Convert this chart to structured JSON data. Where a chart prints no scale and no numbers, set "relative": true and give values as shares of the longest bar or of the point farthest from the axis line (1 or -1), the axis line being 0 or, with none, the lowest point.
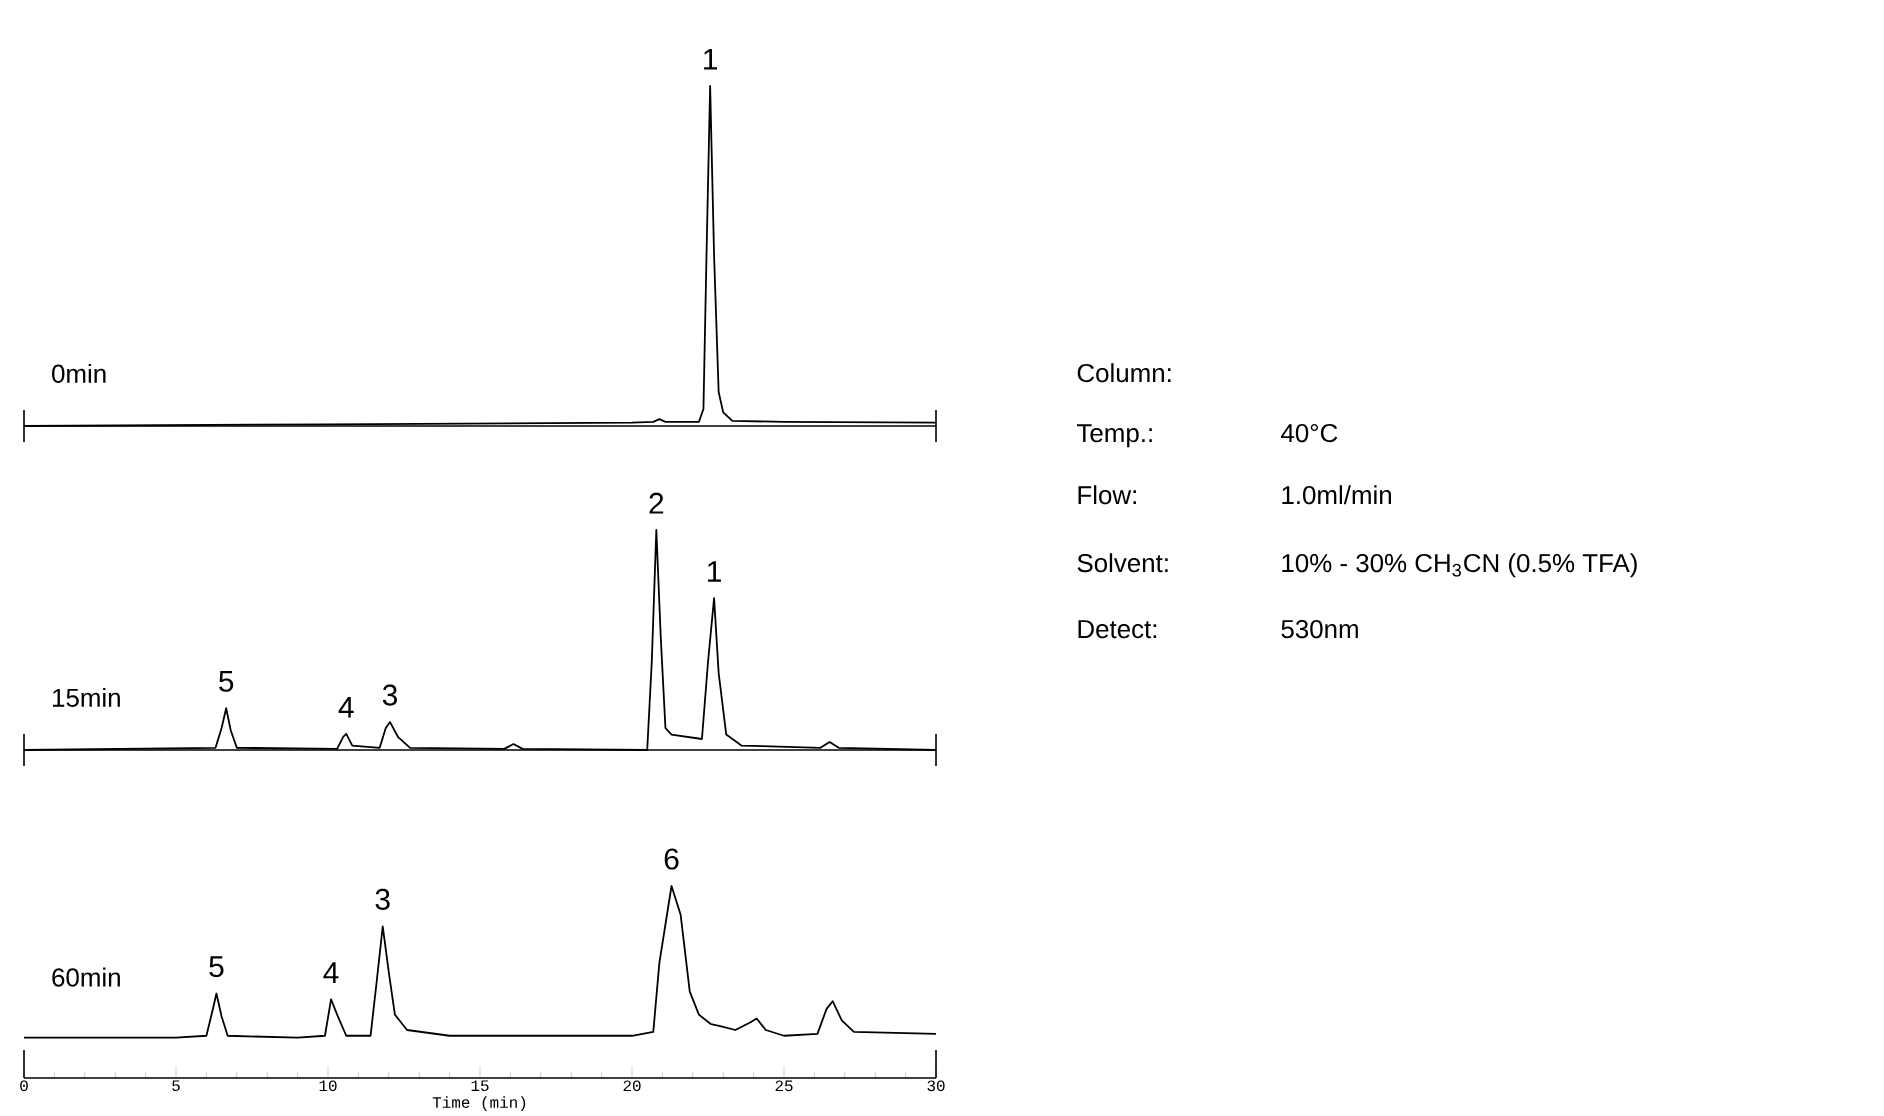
{
  "chart_data": [
    {
      "type": "line",
      "title": "0min",
      "relative": true,
      "xlim": [
        0,
        30
      ],
      "x": [
        0,
        10,
        20,
        20.7,
        20.9,
        21.1,
        22.2,
        22.35,
        22.45,
        22.57,
        22.7,
        22.85,
        23.0,
        23.3,
        25,
        30
      ],
      "series": [
        {
          "color": "#000000",
          "values": [
            0,
            0.005,
            0.01,
            0.012,
            0.02,
            0.012,
            0.012,
            0.05,
            0.5,
            1.0,
            0.5,
            0.1,
            0.04,
            0.015,
            0.012,
            0.01
          ]
        }
      ],
      "annotations": [
        {
          "text": "1",
          "x": 22.57,
          "y": 1.0
        }
      ]
    },
    {
      "type": "line",
      "title": "15min",
      "relative": true,
      "xlim": [
        0,
        30
      ],
      "x": [
        0,
        6.3,
        6.5,
        6.65,
        6.8,
        7.0,
        10.3,
        10.5,
        10.6,
        10.8,
        11.7,
        11.9,
        12.04,
        12.3,
        12.7,
        15.8,
        16.1,
        16.4,
        20.5,
        20.65,
        20.8,
        20.95,
        21.1,
        21.3,
        22.3,
        22.5,
        22.7,
        22.85,
        23.1,
        23.6,
        26.2,
        26.5,
        26.8,
        30
      ],
      "series": [
        {
          "color": "#000000",
          "values": [
            0,
            0.01,
            0.1,
            0.19,
            0.09,
            0.01,
            0.005,
            0.06,
            0.073,
            0.02,
            0.01,
            0.1,
            0.127,
            0.06,
            0.01,
            0.005,
            0.027,
            0.005,
            0.0,
            0.4,
            1.0,
            0.5,
            0.1,
            0.07,
            0.05,
            0.4,
            0.69,
            0.35,
            0.07,
            0.02,
            0.01,
            0.036,
            0.01,
            0.0
          ]
        }
      ],
      "annotations": [
        {
          "text": "5",
          "x": 6.65,
          "y": 0.19
        },
        {
          "text": "4",
          "x": 10.6,
          "y": 0.073
        },
        {
          "text": "3",
          "x": 12.04,
          "y": 0.127
        },
        {
          "text": "2",
          "x": 20.8,
          "y": 1.0
        },
        {
          "text": "1",
          "x": 22.7,
          "y": 0.69
        }
      ]
    },
    {
      "type": "line",
      "title": "60min",
      "relative": true,
      "xlim": [
        0,
        30
      ],
      "xticks": [
        0,
        5,
        10,
        15,
        20,
        25,
        30
      ],
      "xlabel": "Time (min)",
      "x": [
        0,
        5,
        6.0,
        6.2,
        6.33,
        6.5,
        6.7,
        9,
        9.9,
        10.1,
        10.3,
        10.6,
        11.4,
        11.6,
        11.8,
        12.0,
        12.2,
        12.6,
        14,
        20,
        20.7,
        20.9,
        21.3,
        21.6,
        21.9,
        22.2,
        22.6,
        22.9,
        23.4,
        23.9,
        24.1,
        24.4,
        25,
        26.1,
        26.4,
        26.6,
        26.9,
        27.3,
        30
      ],
      "series": [
        {
          "color": "#000000",
          "values": [
            0.21,
            0.21,
            0.22,
            0.35,
            0.44,
            0.32,
            0.22,
            0.21,
            0.22,
            0.41,
            0.33,
            0.22,
            0.22,
            0.5,
            0.79,
            0.55,
            0.33,
            0.25,
            0.22,
            0.22,
            0.24,
            0.6,
            1.0,
            0.85,
            0.45,
            0.33,
            0.28,
            0.27,
            0.25,
            0.29,
            0.31,
            0.25,
            0.22,
            0.23,
            0.36,
            0.4,
            0.3,
            0.24,
            0.23
          ]
        }
      ],
      "annotations": [
        {
          "text": "5",
          "x": 6.33,
          "y": 0.44
        },
        {
          "text": "4",
          "x": 10.1,
          "y": 0.41
        },
        {
          "text": "3",
          "x": 11.8,
          "y": 0.79
        },
        {
          "text": "6",
          "x": 21.3,
          "y": 1.0
        }
      ]
    },
    {
      "type": "other",
      "annotations": [
        "Column:",
        "Temp.:",
        "Flow:",
        "Solvent:",
        "Detect:",
        "40°C",
        "1.0ml/min",
        "10% - 30% CH$_{3}$CN (0.5% TFA)",
        "530nm"
      ]
    }
  ]
}
